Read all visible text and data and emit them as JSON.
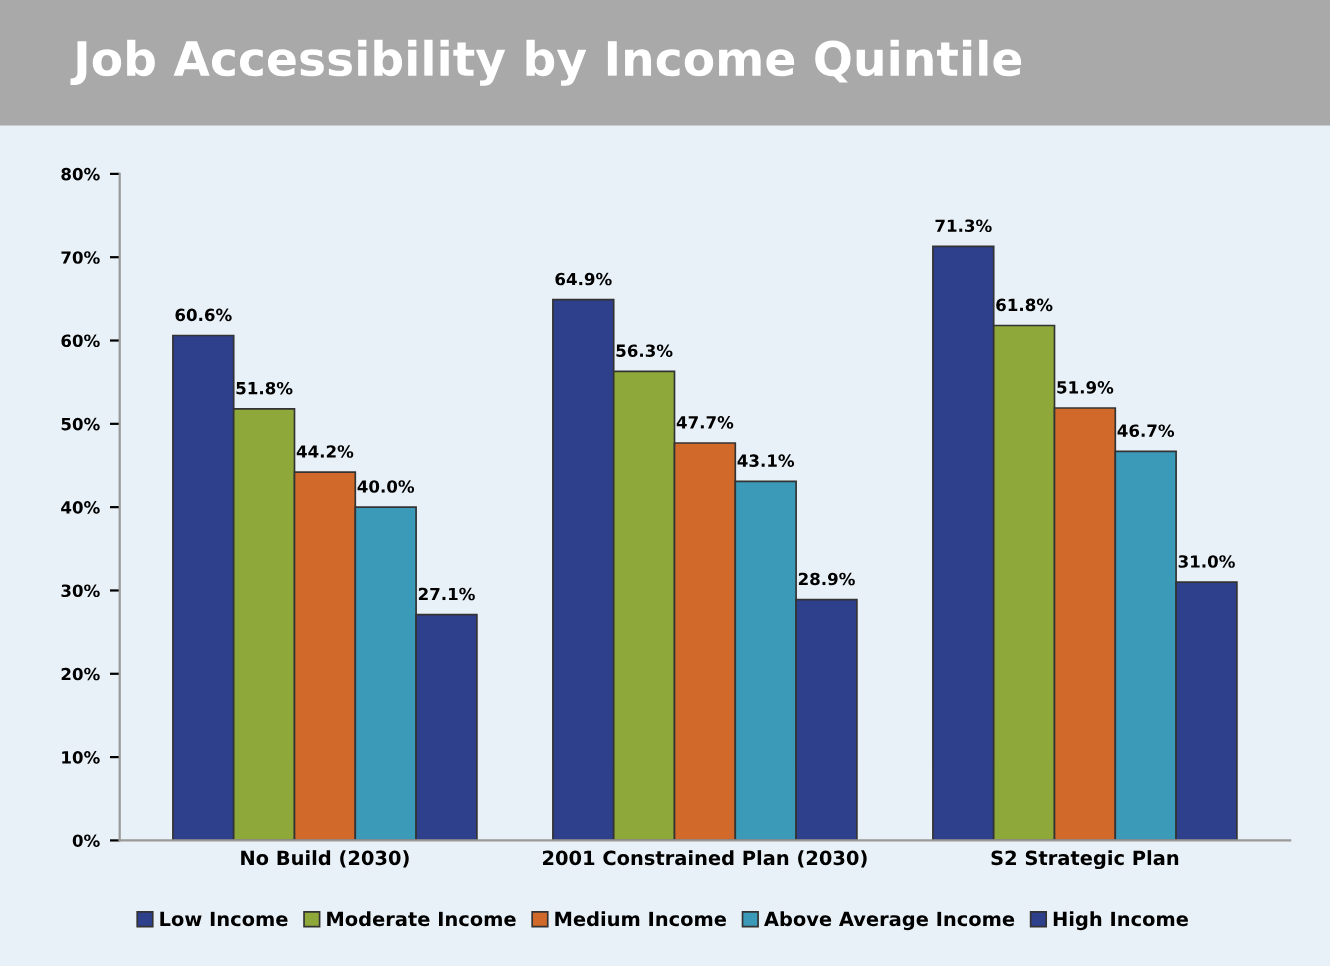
{
  "chart_data": {
    "type": "bar",
    "title": "Job Accessibility by Income Quintile",
    "categories": [
      "No Build (2030)",
      "2001 Constrained Plan (2030)",
      "S2 Strategic Plan"
    ],
    "series": [
      {
        "name": "Low Income",
        "color": "#2e3f8c",
        "values": [
          60.6,
          64.9,
          71.3
        ],
        "value_labels": [
          "60.6%",
          "64.9%",
          "71.3%"
        ]
      },
      {
        "name": "Moderate Income",
        "color": "#8fa83a",
        "values": [
          51.8,
          56.3,
          61.8
        ],
        "value_labels": [
          "51.8%",
          "56.3%",
          "61.8%"
        ]
      },
      {
        "name": "Medium Income",
        "color": "#d0692a",
        "values": [
          44.2,
          47.7,
          51.9
        ],
        "value_labels": [
          "44.2%",
          "47.7%",
          "51.9%"
        ]
      },
      {
        "name": "Above Average Income",
        "color": "#3a9ab8",
        "values": [
          40.0,
          43.1,
          46.7
        ],
        "value_labels": [
          "40.0%",
          "43.1%",
          "46.7%"
        ]
      },
      {
        "name": "High Income",
        "color": "#2e3f8c",
        "values": [
          27.1,
          28.9,
          31.0
        ],
        "value_labels": [
          "27.1%",
          "28.9%",
          "31.0%"
        ]
      }
    ],
    "ylim": [
      0,
      80
    ],
    "yticks": [
      {
        "value": 0,
        "label": "0%"
      },
      {
        "value": 10,
        "label": "10%"
      },
      {
        "value": 20,
        "label": "20%"
      },
      {
        "value": 30,
        "label": "30%"
      },
      {
        "value": 40,
        "label": "40%"
      },
      {
        "value": 50,
        "label": "50%"
      },
      {
        "value": 60,
        "label": "60%"
      },
      {
        "value": 70,
        "label": "70%"
      },
      {
        "value": 80,
        "label": "80%"
      }
    ],
    "grid": false,
    "legend": "bottom"
  }
}
